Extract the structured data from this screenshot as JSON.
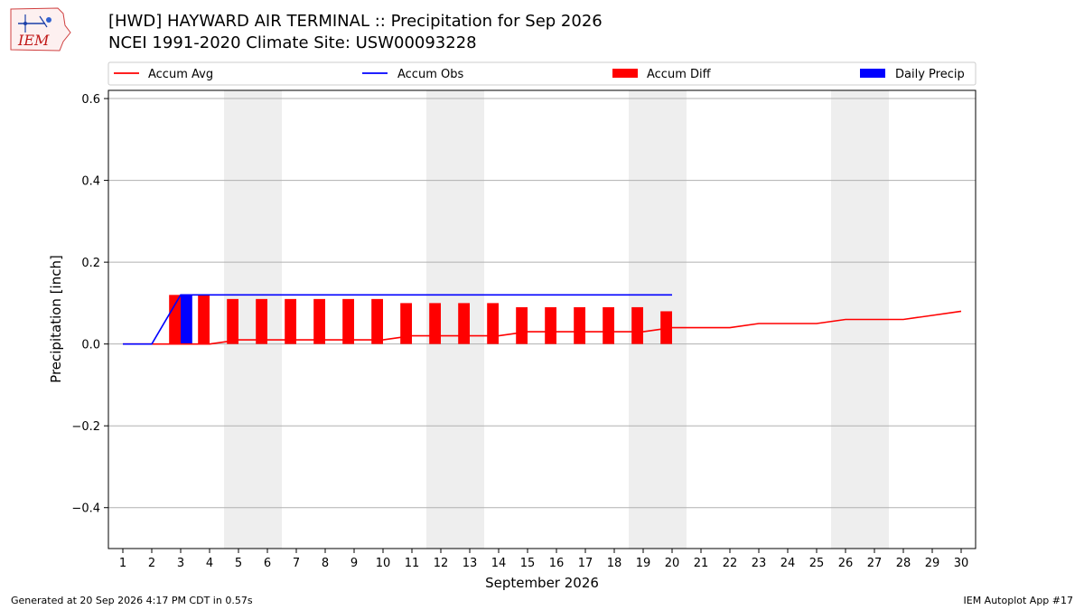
{
  "header": {
    "title_line1": "[HWD] HAYWARD AIR TERMINAL :: Precipitation for Sep 2026",
    "title_line2": "NCEI 1991-2020 Climate Site: USW00093228",
    "logo_text": "IEM"
  },
  "footer": {
    "generated": "Generated at 20 Sep 2026 4:17 PM CDT in 0.57s",
    "app": "IEM Autoplot App #17"
  },
  "colors": {
    "accum_avg": "#ff0000",
    "accum_obs": "#0000ff",
    "accum_diff": "#ff0000",
    "daily_precip": "#0000ff",
    "weekend_band": "#eeeeee",
    "grid": "#b0b0b0"
  },
  "chart_data": {
    "type": "bar",
    "xlabel": "September 2026",
    "ylabel": "Precipitation [inch]",
    "xlim": [
      0.5,
      30.5
    ],
    "ylim": [
      -0.5,
      0.62
    ],
    "yticks": [
      -0.4,
      -0.2,
      0.0,
      0.2,
      0.4,
      0.6
    ],
    "ytick_labels": [
      "−0.4",
      "−0.2",
      "0.0",
      "0.2",
      "0.4",
      "0.6"
    ],
    "x": [
      1,
      2,
      3,
      4,
      5,
      6,
      7,
      8,
      9,
      10,
      11,
      12,
      13,
      14,
      15,
      16,
      17,
      18,
      19,
      20,
      21,
      22,
      23,
      24,
      25,
      26,
      27,
      28,
      29,
      30
    ],
    "grid": "horizontal",
    "legend_position": "top",
    "legend": [
      "Accum Avg",
      "Accum Obs",
      "Accum Diff",
      "Daily Precip"
    ],
    "weekend_bands": [
      [
        4.5,
        6.5
      ],
      [
        11.5,
        13.5
      ],
      [
        18.5,
        20.5
      ],
      [
        25.5,
        27.5
      ]
    ],
    "series": [
      {
        "name": "Accum Avg",
        "kind": "line",
        "x": [
          1,
          2,
          3,
          4,
          5,
          6,
          7,
          8,
          9,
          10,
          11,
          12,
          13,
          14,
          15,
          16,
          17,
          18,
          19,
          20,
          21,
          22,
          23,
          24,
          25,
          26,
          27,
          28,
          29,
          30
        ],
        "values": [
          0.0,
          0.0,
          0.0,
          0.0,
          0.01,
          0.01,
          0.01,
          0.01,
          0.01,
          0.01,
          0.02,
          0.02,
          0.02,
          0.02,
          0.03,
          0.03,
          0.03,
          0.03,
          0.03,
          0.04,
          0.04,
          0.04,
          0.05,
          0.05,
          0.05,
          0.06,
          0.06,
          0.06,
          0.07,
          0.08
        ]
      },
      {
        "name": "Accum Obs",
        "kind": "line",
        "x": [
          1,
          2,
          3,
          4,
          5,
          6,
          7,
          8,
          9,
          10,
          11,
          12,
          13,
          14,
          15,
          16,
          17,
          18,
          19,
          20
        ],
        "values": [
          0.0,
          0.0,
          0.12,
          0.12,
          0.12,
          0.12,
          0.12,
          0.12,
          0.12,
          0.12,
          0.12,
          0.12,
          0.12,
          0.12,
          0.12,
          0.12,
          0.12,
          0.12,
          0.12,
          0.12
        ]
      },
      {
        "name": "Accum Diff",
        "kind": "bar",
        "x": [
          3,
          4,
          5,
          6,
          7,
          8,
          9,
          10,
          11,
          12,
          13,
          14,
          15,
          16,
          17,
          18,
          19,
          20
        ],
        "values": [
          0.12,
          0.12,
          0.11,
          0.11,
          0.11,
          0.11,
          0.11,
          0.11,
          0.1,
          0.1,
          0.1,
          0.1,
          0.09,
          0.09,
          0.09,
          0.09,
          0.09,
          0.08
        ]
      },
      {
        "name": "Daily Precip",
        "kind": "bar",
        "x": [
          3
        ],
        "values": [
          0.12
        ]
      }
    ]
  }
}
